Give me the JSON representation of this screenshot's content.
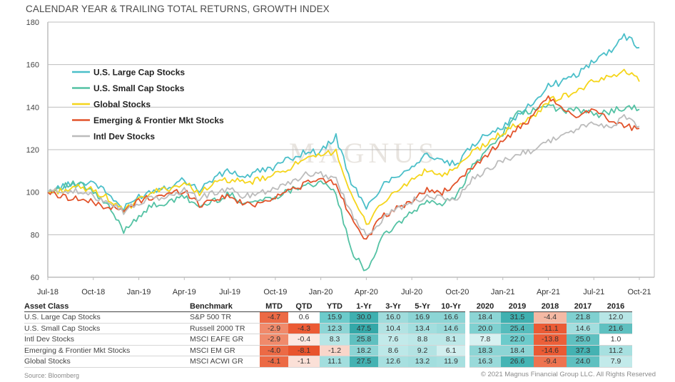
{
  "title": "CALENDAR YEAR & TRAILING TOTAL RETURNS, GROWTH INDEX",
  "source": "Source: Bloomberg",
  "copyright": "© 2021 Magnus Financial Group LLC. All Rights Reserved",
  "watermark": "MAGNUS",
  "chart_data": {
    "type": "line",
    "title": "CALENDAR YEAR & TRAILING TOTAL RETURNS, GROWTH INDEX",
    "xlabel": "",
    "ylabel": "",
    "ylim": [
      60,
      180
    ],
    "yticks": [
      60,
      80,
      100,
      120,
      140,
      160,
      180
    ],
    "xticks": [
      "Jul-18",
      "Oct-18",
      "Jan-19",
      "Apr-19",
      "Jul-19",
      "Oct-19",
      "Jan-20",
      "Apr-20",
      "Jul-20",
      "Oct-20",
      "Jan-21",
      "Apr-21",
      "Jul-21",
      "Oct-21"
    ],
    "grid": "horizontal",
    "legend_position": "top-left",
    "x": [
      "Jul-18",
      "Aug-18",
      "Sep-18",
      "Oct-18",
      "Nov-18",
      "Dec-18",
      "Jan-19",
      "Feb-19",
      "Mar-19",
      "Apr-19",
      "May-19",
      "Jun-19",
      "Jul-19",
      "Aug-19",
      "Sep-19",
      "Oct-19",
      "Nov-19",
      "Dec-19",
      "Jan-20",
      "Feb-20",
      "Mar-20",
      "Apr-20",
      "May-20",
      "Jun-20",
      "Jul-20",
      "Aug-20",
      "Sep-20",
      "Oct-20",
      "Nov-20",
      "Dec-20",
      "Jan-21",
      "Feb-21",
      "Mar-21",
      "Apr-21",
      "May-21",
      "Jun-21",
      "Jul-21",
      "Aug-21",
      "Sep-21",
      "Oct-21"
    ],
    "series": [
      {
        "name": "U.S. Large Cap Stocks",
        "color": "#4bbfc9",
        "values": [
          100,
          103,
          104,
          105,
          99,
          92,
          98,
          101,
          103,
          106,
          101,
          107,
          110,
          107,
          110,
          112,
          116,
          119,
          119,
          126,
          105,
          92,
          103,
          108,
          112,
          118,
          114,
          113,
          122,
          128,
          131,
          136,
          142,
          150,
          152,
          156,
          162,
          166,
          174,
          168
        ]
      },
      {
        "name": "U.S. Small Cap Stocks",
        "color": "#54c2a4",
        "values": [
          100,
          103,
          104,
          100,
          93,
          82,
          89,
          94,
          95,
          98,
          93,
          96,
          99,
          95,
          96,
          98,
          101,
          104,
          104,
          100,
          72,
          63,
          78,
          85,
          90,
          96,
          94,
          99,
          112,
          120,
          128,
          137,
          138,
          141,
          138,
          139,
          136,
          138,
          140,
          139
        ]
      },
      {
        "name": "Global Stocks",
        "color": "#f5d51b",
        "values": [
          100,
          101,
          102,
          101,
          97,
          91,
          96,
          100,
          102,
          104,
          100,
          104,
          106,
          104,
          106,
          108,
          112,
          115,
          117,
          120,
          98,
          85,
          95,
          100,
          106,
          110,
          108,
          111,
          119,
          123,
          128,
          132,
          135,
          143,
          145,
          148,
          152,
          154,
          158,
          152
        ]
      },
      {
        "name": "Emerging & Frontier Mkt Stocks",
        "color": "#e2532b",
        "values": [
          100,
          98,
          97,
          95,
          93,
          91,
          96,
          98,
          99,
          101,
          94,
          97,
          98,
          94,
          95,
          98,
          101,
          104,
          106,
          104,
          88,
          78,
          88,
          92,
          96,
          101,
          100,
          104,
          112,
          118,
          124,
          130,
          135,
          145,
          138,
          136,
          140,
          134,
          131,
          130
        ]
      },
      {
        "name": "Intl Dev Stocks",
        "color": "#bcbcbc",
        "values": [
          100,
          101,
          100,
          98,
          96,
          91,
          95,
          97,
          98,
          101,
          97,
          100,
          101,
          98,
          100,
          102,
          105,
          108,
          109,
          106,
          90,
          80,
          87,
          92,
          96,
          98,
          97,
          97,
          106,
          110,
          115,
          118,
          120,
          124,
          127,
          130,
          132,
          131,
          135,
          131
        ]
      }
    ]
  },
  "table": {
    "headers": [
      "Asset Class",
      "Benchmark",
      "MTD",
      "QTD",
      "YTD",
      "1-Yr",
      "3-Yr",
      "5-Yr",
      "10-Yr",
      "2020",
      "2019",
      "2018",
      "2017",
      "2016"
    ],
    "rows": [
      {
        "asset": "U.S. Large Cap Stocks",
        "benchmark": "S&P 500 TR",
        "values": [
          "-4.7",
          "0.6",
          "15.9",
          "30.0",
          "16.0",
          "16.9",
          "16.6",
          "18.4",
          "31.5",
          "-4.4",
          "21.8",
          "12.0"
        ]
      },
      {
        "asset": "U.S. Small Cap Stocks",
        "benchmark": "Russell 2000 TR",
        "values": [
          "-2.9",
          "-4.3",
          "12.3",
          "47.5",
          "10.4",
          "13.4",
          "14.6",
          "20.0",
          "25.4",
          "-11.1",
          "14.6",
          "21.6"
        ]
      },
      {
        "asset": "Intl Dev Stocks",
        "benchmark": "MSCI EAFE GR",
        "values": [
          "-2.9",
          "-0.4",
          "8.3",
          "25.8",
          "7.6",
          "8.8",
          "8.1",
          "7.8",
          "22.0",
          "-13.8",
          "25.0",
          "1.0"
        ]
      },
      {
        "asset": "Emerging & Frontier Mkt Stocks",
        "benchmark": "MSCI EM GR",
        "values": [
          "-4.0",
          "-8.1",
          "-1.2",
          "18.2",
          "8.6",
          "9.2",
          "6.1",
          "18.3",
          "18.4",
          "-14.6",
          "37.3",
          "11.2"
        ]
      },
      {
        "asset": "Global Stocks",
        "benchmark": "MSCI ACWI GR",
        "values": [
          "-4.1",
          "-1.1",
          "11.1",
          "27.5",
          "12.6",
          "13.2",
          "11.9",
          "16.3",
          "26.6",
          "-9.4",
          "24.0",
          "7.9"
        ]
      }
    ],
    "cell_colors": [
      [
        "#ec6a45",
        "#ffffff",
        "#6ccbcb",
        "#3fb0b0",
        "#9fdcdc",
        "#8cd5d5",
        "#8cd5d5",
        "#8cd5d5",
        "#3fb0b0",
        "#f5b9a4",
        "#7fd0d0",
        "#b7e6e6"
      ],
      [
        "#f08a6b",
        "#eb5b35",
        "#8dd5d5",
        "#34a8a8",
        "#b3e3e3",
        "#a2dede",
        "#99dada",
        "#7fd0d0",
        "#55bcbc",
        "#eb5b35",
        "#a2dede",
        "#5fc0c0"
      ],
      [
        "#f08a6b",
        "#fde8e1",
        "#b7e6e6",
        "#5fc0c0",
        "#c2eaea",
        "#bce8e8",
        "#bce8e8",
        "#d7f1f1",
        "#6ccbcb",
        "#ec5f39",
        "#5fc0c0",
        "#ffffff"
      ],
      [
        "#ec6a45",
        "#e8542d",
        "#f9d6ca",
        "#8dd5d5",
        "#bce8e8",
        "#b3e3e3",
        "#d2efef",
        "#8dd5d5",
        "#8dd5d5",
        "#ea5a33",
        "#44b2b2",
        "#a7e0e0"
      ],
      [
        "#ec6a45",
        "#fbe0d7",
        "#a2dede",
        "#44b2b2",
        "#a7e0e0",
        "#a2dede",
        "#a7e0e0",
        "#99dada",
        "#45b4b4",
        "#ee7350",
        "#5fc0c0",
        "#c2eaea"
      ]
    ]
  }
}
